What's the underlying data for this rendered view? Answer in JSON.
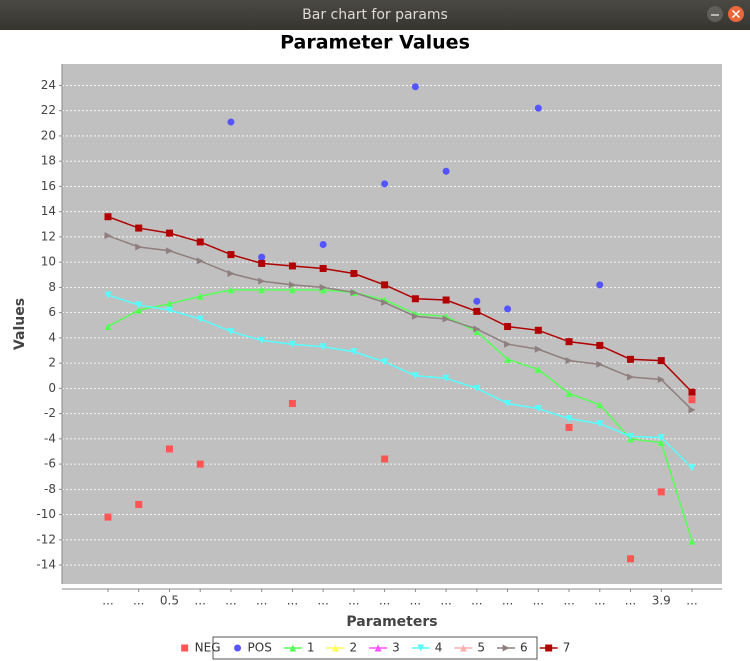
{
  "window_title": "Bar chart for params",
  "chart_data": {
    "type": "line",
    "title": "Parameter Values",
    "xlabel": "Parameters",
    "ylabel": "Values",
    "categories": [
      "...",
      "...",
      "0.5",
      "...",
      "...",
      "...",
      "...",
      "...",
      "...",
      "...",
      "...",
      "...",
      "...",
      "...",
      "...",
      "...",
      "...",
      "...",
      "3.9",
      "..."
    ],
    "ylim": [
      -15.5,
      25.7
    ],
    "yticks": [
      -14,
      -12,
      -10,
      -8,
      -6,
      -4,
      -2,
      0,
      2,
      4,
      6,
      8,
      10,
      12,
      14,
      16,
      18,
      20,
      22,
      24
    ],
    "grid": true,
    "legend": "bottom",
    "series": [
      {
        "name": "NEG",
        "color": "#ff5555",
        "marker": "square",
        "line": false,
        "values": [
          -10.2,
          -9.2,
          -4.8,
          -6.0,
          null,
          null,
          -1.2,
          null,
          null,
          -5.6,
          null,
          null,
          null,
          null,
          null,
          -3.1,
          null,
          -13.5,
          -8.2,
          -0.9
        ]
      },
      {
        "name": "POS",
        "color": "#5555ff",
        "marker": "circle",
        "line": false,
        "values": [
          null,
          null,
          null,
          null,
          21.1,
          10.4,
          null,
          11.4,
          null,
          16.2,
          23.9,
          17.2,
          6.9,
          6.3,
          22.2,
          null,
          8.2,
          null,
          null,
          null
        ]
      },
      {
        "name": "1",
        "color": "#55ff55",
        "marker": "triangle-up",
        "line": true,
        "values": [
          4.9,
          6.2,
          6.7,
          7.3,
          7.8,
          7.8,
          7.8,
          7.8,
          7.6,
          7.0,
          5.9,
          5.7,
          4.5,
          2.3,
          1.5,
          -0.4,
          -1.3,
          -4.0,
          -4.3,
          -12.1
        ]
      },
      {
        "name": "2",
        "color": "#ffff55",
        "marker": "triangle-up",
        "line": true,
        "values": [
          null,
          null,
          null,
          null,
          null,
          null,
          null,
          null,
          null,
          null,
          null,
          null,
          null,
          null,
          null,
          null,
          null,
          null,
          null,
          null
        ]
      },
      {
        "name": "3",
        "color": "#ff55ff",
        "marker": "triangle-up",
        "line": true,
        "values": [
          null,
          null,
          null,
          null,
          null,
          null,
          null,
          null,
          null,
          null,
          null,
          null,
          null,
          null,
          null,
          null,
          null,
          null,
          null,
          null
        ]
      },
      {
        "name": "4",
        "color": "#55ffff",
        "marker": "triangle-down",
        "line": true,
        "values": [
          7.4,
          6.6,
          6.2,
          5.5,
          4.5,
          3.8,
          3.5,
          3.3,
          2.9,
          2.1,
          1.0,
          0.8,
          0.0,
          -1.2,
          -1.6,
          -2.4,
          -2.8,
          -3.8,
          -3.9,
          -6.3
        ]
      },
      {
        "name": "5",
        "color": "#ffafaf",
        "marker": "triangle-up",
        "line": true,
        "values": [
          null,
          null,
          null,
          null,
          null,
          null,
          null,
          null,
          null,
          null,
          null,
          null,
          null,
          null,
          null,
          null,
          null,
          null,
          null,
          null
        ]
      },
      {
        "name": "6",
        "color": "#8f7f7f",
        "marker": "triangle-right",
        "line": true,
        "values": [
          12.1,
          11.2,
          10.9,
          10.1,
          9.1,
          8.5,
          8.2,
          8.0,
          7.6,
          6.8,
          5.7,
          5.5,
          4.7,
          3.5,
          3.1,
          2.2,
          1.9,
          0.9,
          0.7,
          -1.7
        ]
      },
      {
        "name": "7",
        "color": "#b00000",
        "marker": "square",
        "line": true,
        "values": [
          13.6,
          12.7,
          12.3,
          11.6,
          10.6,
          9.9,
          9.7,
          9.5,
          9.1,
          8.2,
          7.1,
          7.0,
          6.1,
          4.9,
          4.6,
          3.7,
          3.4,
          2.3,
          2.2,
          -0.3
        ]
      }
    ]
  }
}
